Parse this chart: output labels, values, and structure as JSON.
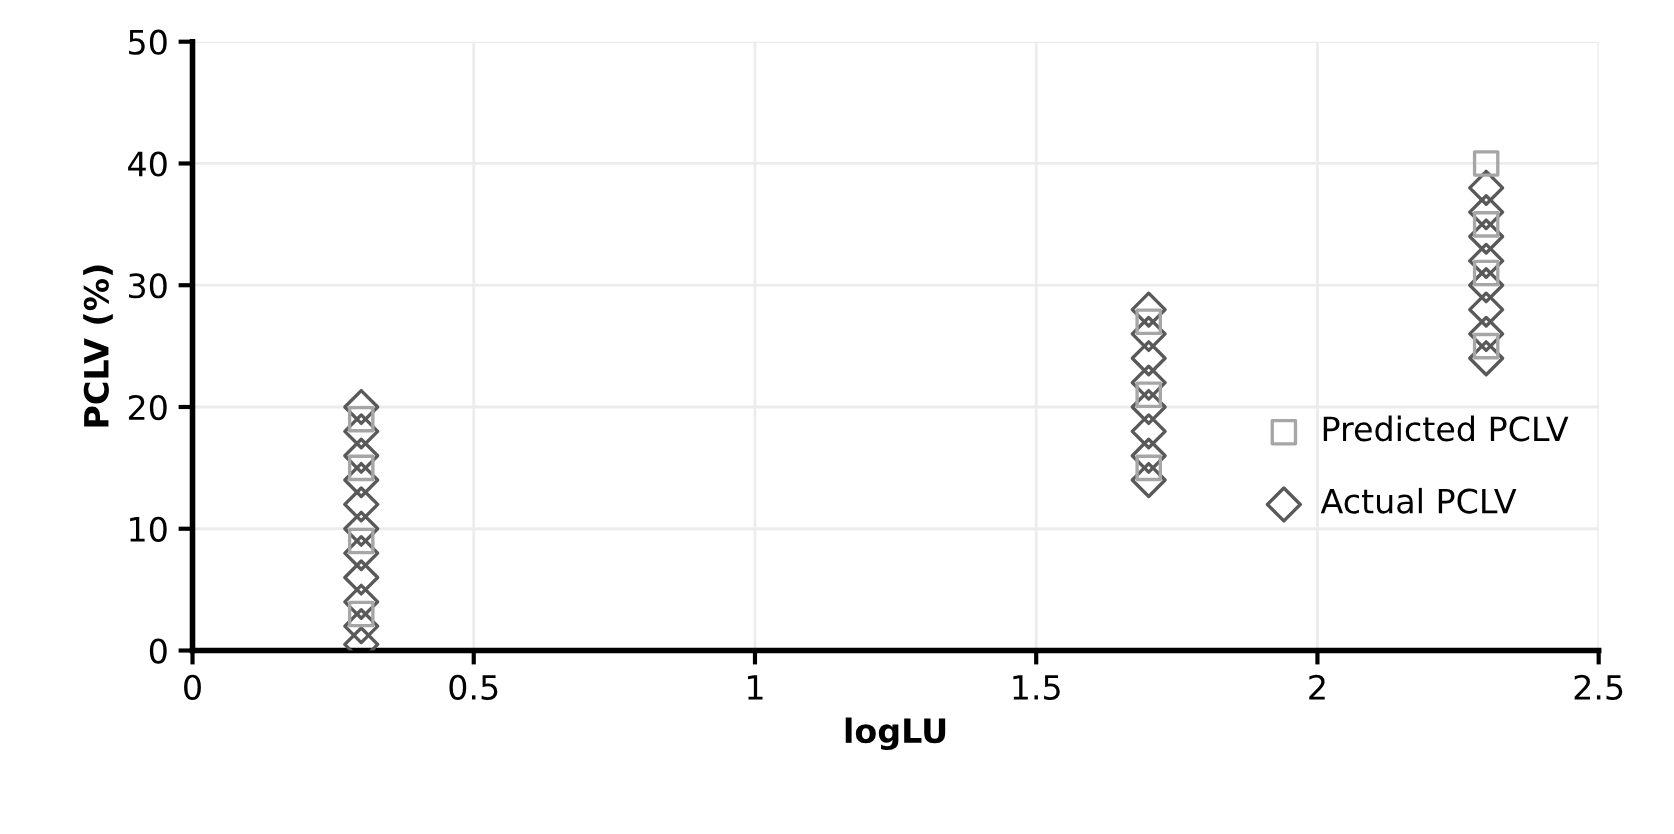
{
  "chart_data": {
    "type": "scatter",
    "xlabel": "logLU",
    "ylabel": "PCLV (%)",
    "xlim": [
      0,
      2.5
    ],
    "ylim": [
      0,
      50
    ],
    "xticks": [
      0,
      0.5,
      1,
      1.5,
      2,
      2.5
    ],
    "yticks": [
      0,
      10,
      20,
      30,
      40,
      50
    ],
    "grid": true,
    "legend": "right",
    "series": [
      {
        "name": "Predicted PCLV",
        "color": "#a6a6a6",
        "marker": "square",
        "x": [
          0.3,
          0.3,
          0.3,
          0.3,
          1.7,
          1.7,
          1.7,
          2.3,
          2.3,
          2.3,
          2.3
        ],
        "values": [
          3,
          9,
          15,
          19,
          15,
          21,
          27,
          25,
          31,
          35,
          40
        ]
      },
      {
        "name": "Actual PCLV",
        "color": "#595959",
        "marker": "diamond",
        "x": [
          0.3,
          0.3,
          0.3,
          0.3,
          0.3,
          0.3,
          0.3,
          0.3,
          0.3,
          0.3,
          0.3,
          1.7,
          1.7,
          1.7,
          1.7,
          1.7,
          1.7,
          1.7,
          1.7,
          2.3,
          2.3,
          2.3,
          2.3,
          2.3,
          2.3,
          2.3,
          2.3
        ],
        "values": [
          0.5,
          2,
          4,
          6,
          8,
          10,
          12,
          14,
          16,
          18,
          20,
          14,
          16,
          18,
          20,
          22,
          24,
          26,
          28,
          24,
          26,
          28,
          30,
          32,
          34,
          36,
          38
        ]
      }
    ]
  }
}
